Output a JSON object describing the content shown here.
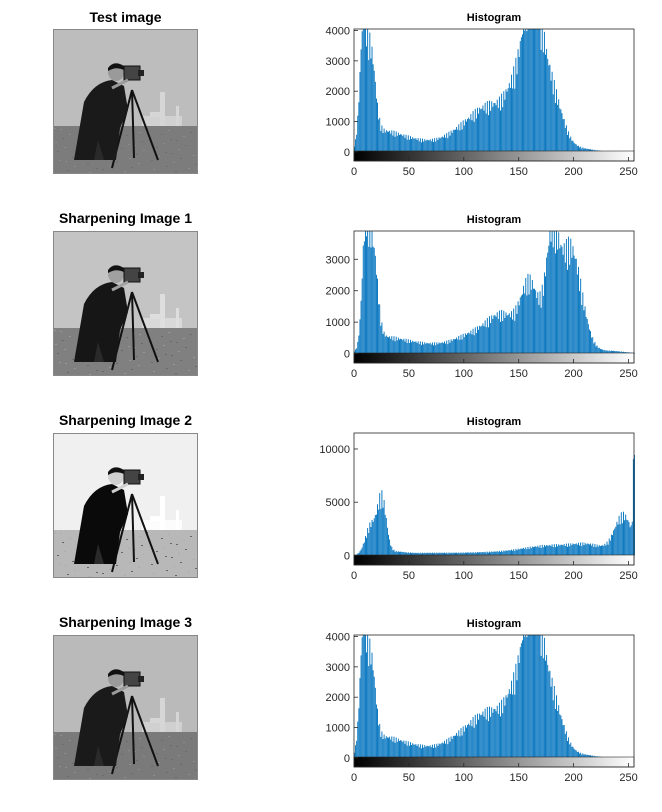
{
  "panels": [
    {
      "title": "Test image",
      "tone": "normal"
    },
    {
      "title": "Sharpening Image 1",
      "tone": "sharp1"
    },
    {
      "title": "Sharpening Image 2",
      "tone": "sharp2"
    },
    {
      "title": "Sharpening Image 3",
      "tone": "sharp3"
    }
  ],
  "colors": {
    "bar": "#0072BD",
    "axis": "#262626",
    "frame": "#888888"
  },
  "chart_data": [
    {
      "type": "bar",
      "title": "Histogram",
      "xlim": [
        0,
        255
      ],
      "ylim": [
        -300,
        4050
      ],
      "xticks": [
        0,
        50,
        100,
        150,
        200,
        250
      ],
      "yticks": [
        0,
        1000,
        2000,
        3000,
        4000
      ],
      "grayscale_colorbar": true,
      "bins": 256,
      "profile_peaks": [
        [
          8,
          4000,
          3
        ],
        [
          15,
          3000,
          4
        ],
        [
          20,
          400,
          12
        ],
        [
          35,
          380,
          15
        ],
        [
          60,
          320,
          20
        ],
        [
          95,
          450,
          15
        ],
        [
          125,
          1600,
          18
        ],
        [
          145,
          1200,
          8
        ],
        [
          160,
          3700,
          8
        ],
        [
          170,
          2800,
          10
        ],
        [
          185,
          900,
          8
        ],
        [
          200,
          150,
          15
        ]
      ]
    },
    {
      "type": "bar",
      "title": "Histogram",
      "xlim": [
        0,
        255
      ],
      "ylim": [
        -300,
        3900
      ],
      "xticks": [
        0,
        50,
        100,
        150,
        200,
        250
      ],
      "yticks": [
        0,
        1000,
        2000,
        3000
      ],
      "grayscale_colorbar": true,
      "bins": 256,
      "profile_peaks": [
        [
          10,
          3900,
          3
        ],
        [
          17,
          3200,
          4
        ],
        [
          22,
          350,
          12
        ],
        [
          40,
          320,
          15
        ],
        [
          70,
          280,
          20
        ],
        [
          105,
          500,
          15
        ],
        [
          135,
          1300,
          15
        ],
        [
          160,
          2200,
          8
        ],
        [
          180,
          3800,
          6
        ],
        [
          195,
          3000,
          8
        ],
        [
          205,
          1200,
          8
        ],
        [
          230,
          100,
          15
        ]
      ]
    },
    {
      "type": "bar",
      "title": "Histogram",
      "xlim": [
        0,
        255
      ],
      "ylim": [
        -900,
        11500
      ],
      "xticks": [
        0,
        50,
        100,
        150,
        200,
        250
      ],
      "yticks": [
        0,
        5000,
        10000
      ],
      "grayscale_colorbar": true,
      "bins": 256,
      "profile_peaks": [
        [
          15,
          3000,
          5
        ],
        [
          25,
          5500,
          4
        ],
        [
          35,
          300,
          10
        ],
        [
          60,
          150,
          20
        ],
        [
          120,
          300,
          40
        ],
        [
          180,
          900,
          25
        ],
        [
          215,
          800,
          15
        ],
        [
          245,
          4000,
          8
        ],
        [
          255,
          11400,
          1
        ]
      ]
    },
    {
      "type": "bar",
      "title": "Histogram",
      "xlim": [
        0,
        255
      ],
      "ylim": [
        -300,
        4050
      ],
      "xticks": [
        0,
        50,
        100,
        150,
        200,
        250
      ],
      "yticks": [
        0,
        1000,
        2000,
        3000,
        4000
      ],
      "grayscale_colorbar": true,
      "bins": 256,
      "profile_peaks": [
        [
          8,
          4000,
          3
        ],
        [
          15,
          3000,
          4
        ],
        [
          20,
          400,
          12
        ],
        [
          35,
          380,
          15
        ],
        [
          60,
          320,
          20
        ],
        [
          95,
          450,
          15
        ],
        [
          125,
          1600,
          18
        ],
        [
          145,
          1200,
          8
        ],
        [
          160,
          3700,
          8
        ],
        [
          170,
          2800,
          10
        ],
        [
          185,
          900,
          8
        ],
        [
          200,
          150,
          15
        ]
      ]
    }
  ]
}
